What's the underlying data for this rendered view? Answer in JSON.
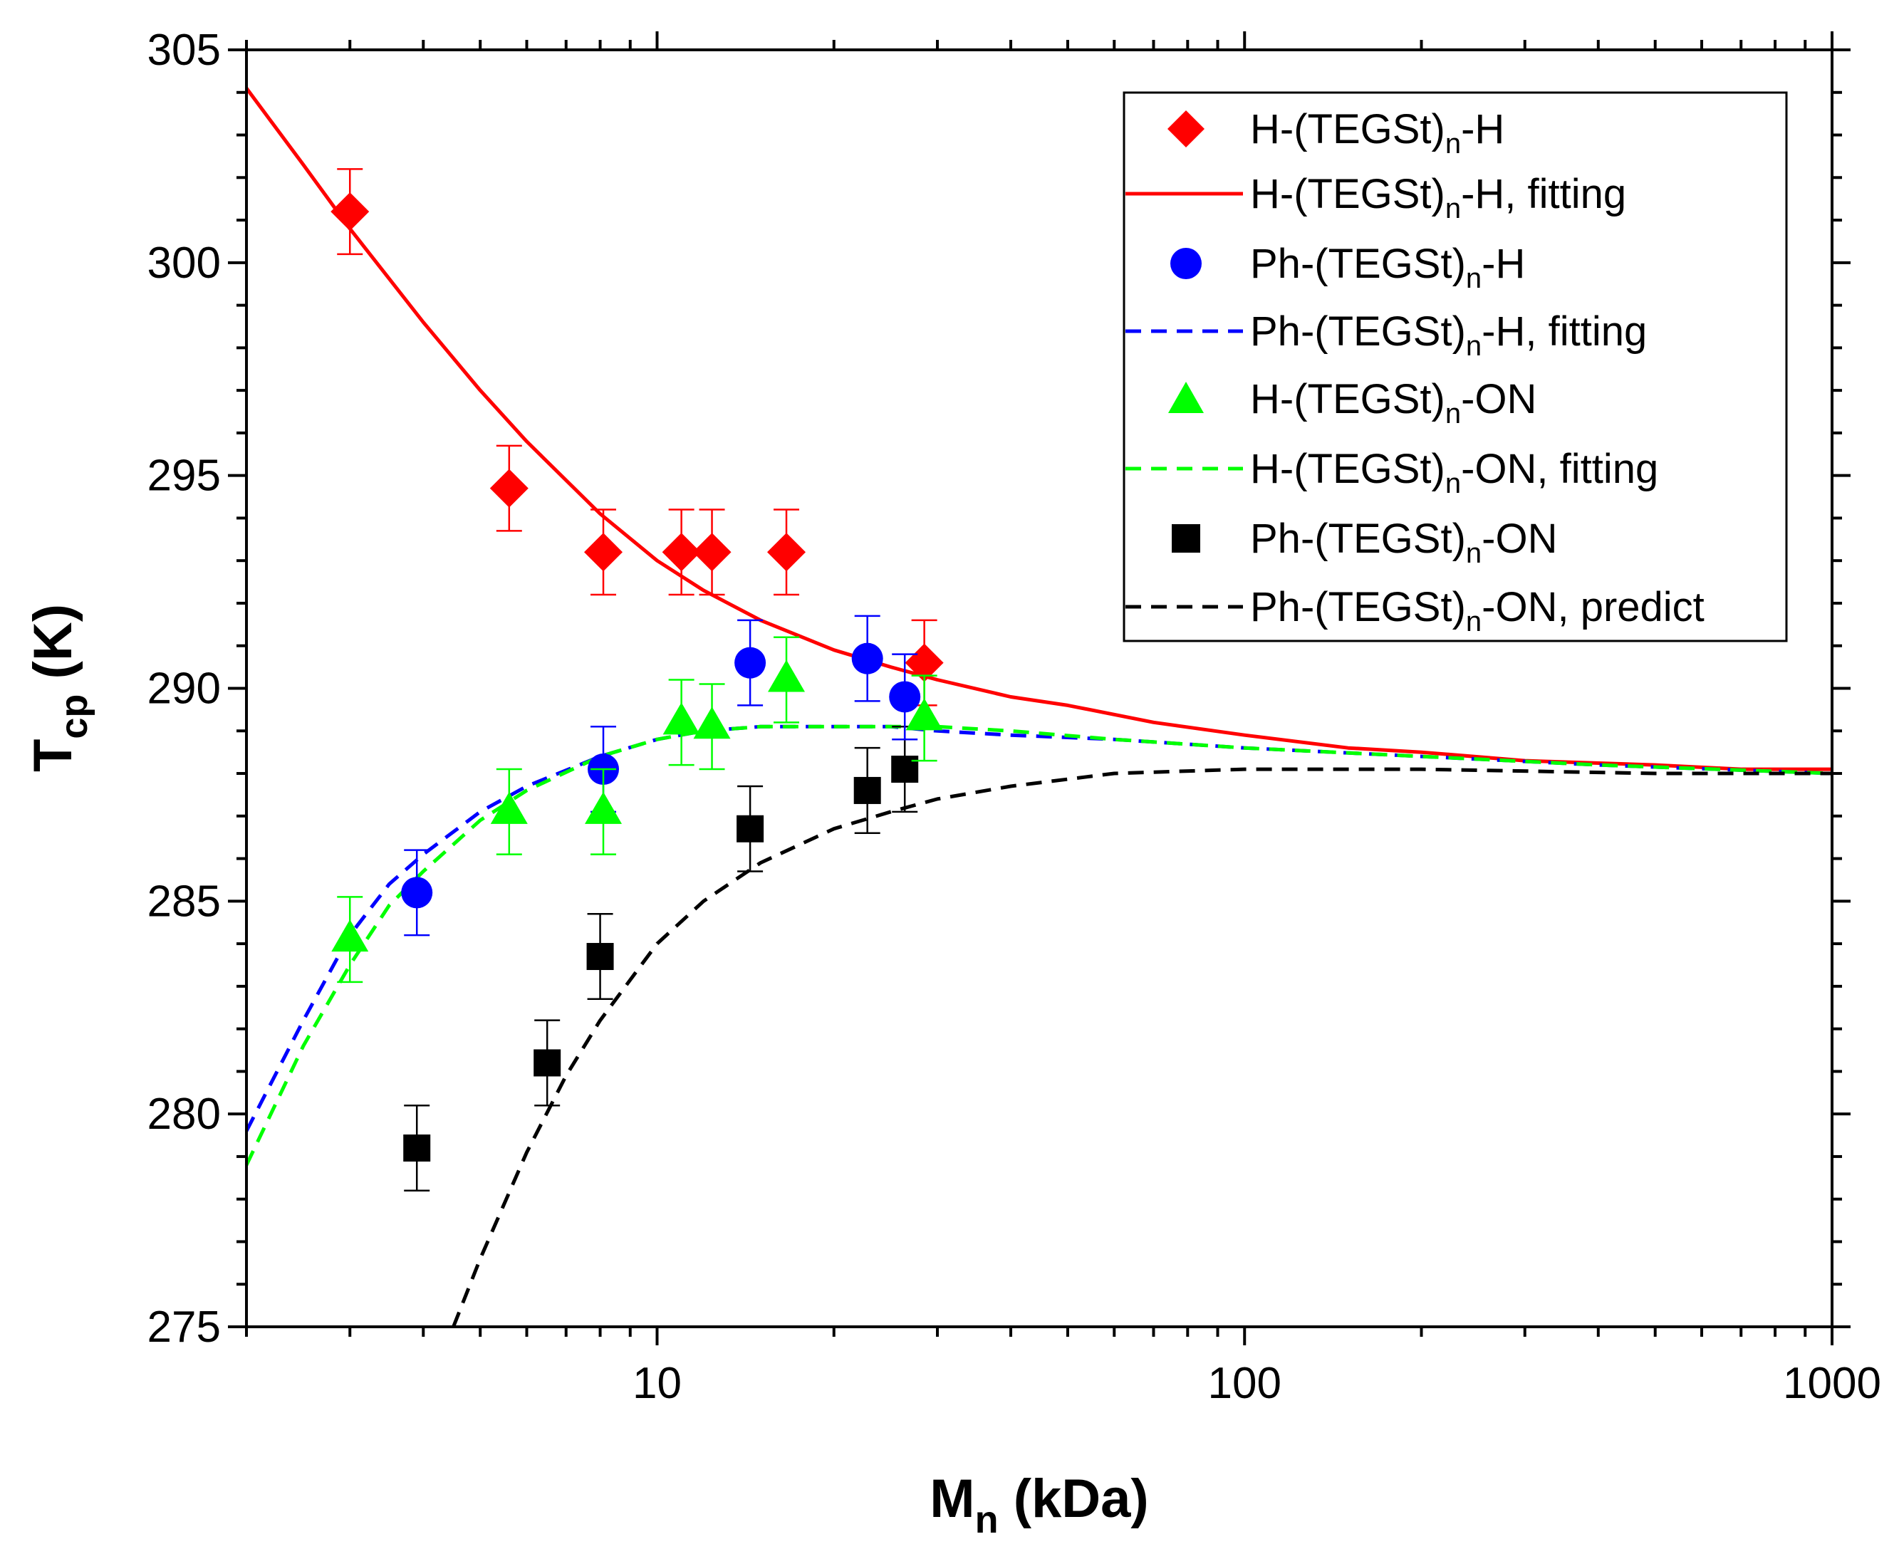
{
  "chart_data": {
    "type": "scatter",
    "title": "",
    "xlabel": {
      "main": "M",
      "sub": "n",
      "rest": " (kDa)"
    },
    "ylabel": {
      "main": "T",
      "sub": "cp",
      "rest": " (K)"
    },
    "xscale": "log",
    "xlim": [
      2,
      1000
    ],
    "ylim": [
      275,
      305
    ],
    "xticks": [
      {
        "value": 10,
        "label": "10"
      },
      {
        "value": 100,
        "label": "100"
      },
      {
        "value": 1000,
        "label": "1000"
      }
    ],
    "yticks": [
      {
        "value": 275,
        "label": "275"
      },
      {
        "value": 280,
        "label": "280"
      },
      {
        "value": 285,
        "label": "285"
      },
      {
        "value": 290,
        "label": "290"
      },
      {
        "value": 295,
        "label": "295"
      },
      {
        "value": 300,
        "label": "300"
      },
      {
        "value": 305,
        "label": "305"
      }
    ],
    "legend_position": "top-right",
    "series": [
      {
        "id": "h-h",
        "name": {
          "pre": "H-(TEGSt)",
          "sub": "n",
          "post": "-H"
        },
        "marker": "diamond",
        "color": "#ff0000",
        "error": 1.0,
        "x": [
          3.0,
          5.6,
          8.1,
          11.0,
          12.4,
          16.6,
          28.5
        ],
        "y": [
          301.2,
          294.7,
          293.2,
          293.2,
          293.2,
          293.2,
          290.6
        ]
      },
      {
        "id": "h-h-fit",
        "name": {
          "pre": "H-(TEGSt)",
          "sub": "n",
          "post": "-H, fitting"
        },
        "line": "solid",
        "color": "#ff0000",
        "x": [
          2,
          2.5,
          3,
          4,
          5,
          6,
          8,
          10,
          12,
          15,
          20,
          25,
          30,
          40,
          50,
          70,
          100,
          150,
          200,
          300,
          500,
          700,
          1000
        ],
        "y": [
          304.1,
          302.3,
          300.8,
          298.6,
          297.0,
          295.8,
          294.1,
          293.0,
          292.3,
          291.6,
          290.9,
          290.5,
          290.2,
          289.8,
          289.6,
          289.2,
          288.9,
          288.6,
          288.5,
          288.3,
          288.2,
          288.1,
          288.1
        ]
      },
      {
        "id": "ph-h",
        "name": {
          "pre": "Ph-(TEGSt)",
          "sub": "n",
          "post": "-H"
        },
        "marker": "circle",
        "color": "#0000ff",
        "error": 1.0,
        "x": [
          3.9,
          8.1,
          14.4,
          22.8,
          26.4
        ],
        "y": [
          285.2,
          288.1,
          290.6,
          290.7,
          289.8
        ]
      },
      {
        "id": "ph-h-fit",
        "name": {
          "pre": "Ph-(TEGSt)",
          "sub": "n",
          "post": "-H, fitting"
        },
        "line": "dashed",
        "color": "#0000ff",
        "x": [
          2,
          2.5,
          3,
          3.5,
          4,
          5,
          6,
          8,
          10,
          12,
          15,
          18,
          20,
          25,
          30,
          40,
          60,
          100,
          200,
          400,
          1000
        ],
        "y": [
          279.6,
          282.2,
          284.2,
          285.4,
          286.1,
          287.1,
          287.7,
          288.4,
          288.8,
          289.0,
          289.1,
          289.1,
          289.1,
          289.1,
          289.0,
          288.9,
          288.8,
          288.6,
          288.4,
          288.2,
          288.0
        ]
      },
      {
        "id": "h-on",
        "name": {
          "pre": "H-(TEGSt)",
          "sub": "n",
          "post": "-ON"
        },
        "marker": "triangle",
        "color": "#00ff00",
        "error": 1.0,
        "x": [
          3.0,
          5.6,
          8.1,
          11.0,
          12.4,
          16.6,
          28.5
        ],
        "y": [
          284.1,
          287.1,
          287.1,
          289.2,
          289.1,
          290.2,
          289.3
        ]
      },
      {
        "id": "h-on-fit",
        "name": {
          "pre": "H-(TEGSt)",
          "sub": "n",
          "post": "-ON, fitting"
        },
        "line": "dashed",
        "color": "#00ff00",
        "x": [
          2,
          2.5,
          3,
          3.5,
          4,
          5,
          6,
          8,
          10,
          12,
          15,
          18,
          20,
          25,
          30,
          40,
          60,
          100,
          200,
          400,
          1000
        ],
        "y": [
          278.8,
          281.6,
          283.5,
          284.9,
          285.7,
          286.9,
          287.6,
          288.4,
          288.8,
          289.0,
          289.1,
          289.1,
          289.1,
          289.1,
          289.1,
          289.0,
          288.8,
          288.6,
          288.4,
          288.2,
          288.0
        ]
      },
      {
        "id": "ph-on",
        "name": {
          "pre": "Ph-(TEGSt)",
          "sub": "n",
          "post": "-ON"
        },
        "marker": "square",
        "color": "#000000",
        "error": 1.0,
        "x": [
          3.9,
          6.5,
          8.0,
          14.4,
          22.8,
          26.4
        ],
        "y": [
          279.2,
          281.2,
          283.7,
          286.7,
          287.6,
          288.1
        ]
      },
      {
        "id": "ph-on-pred",
        "name": {
          "pre": "Ph-(TEGSt)",
          "sub": "n",
          "post": "-ON, predict"
        },
        "line": "dashed",
        "color": "#000000",
        "x": [
          4.5,
          5,
          6,
          7,
          8,
          10,
          12,
          15,
          20,
          25,
          30,
          40,
          60,
          100,
          200,
          500,
          1000
        ],
        "y": [
          275.0,
          276.6,
          279.1,
          280.9,
          282.2,
          284.0,
          285.0,
          285.9,
          286.7,
          287.1,
          287.4,
          287.7,
          288.0,
          288.1,
          288.1,
          288.0,
          288.0
        ]
      }
    ]
  }
}
